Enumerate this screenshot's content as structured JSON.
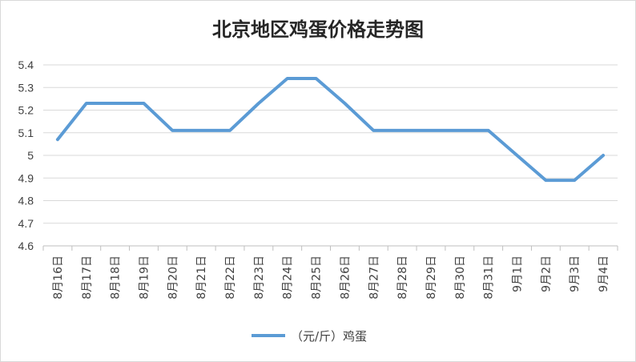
{
  "chart_data": {
    "type": "line",
    "title": "北京地区鸡蛋价格走势图",
    "xlabel": "",
    "ylabel": "",
    "categories": [
      "8月16日",
      "8月17日",
      "8月18日",
      "8月19日",
      "8月20日",
      "8月21日",
      "8月22日",
      "8月23日",
      "8月24日",
      "8月25日",
      "8月26日",
      "8月27日",
      "8月28日",
      "8月29日",
      "8月30日",
      "8月31日",
      "9月1日",
      "9月2日",
      "9月3日",
      "9月4日"
    ],
    "series": [
      {
        "name": "（元/斤）鸡蛋",
        "color": "#5b9bd5",
        "values": [
          5.07,
          5.23,
          5.23,
          5.23,
          5.11,
          5.11,
          5.11,
          5.23,
          5.34,
          5.34,
          5.23,
          5.11,
          5.11,
          5.11,
          5.11,
          5.11,
          5.0,
          4.89,
          4.89,
          5.0
        ]
      }
    ],
    "ylim": [
      4.6,
      5.4
    ],
    "yticks": [
      "4.6",
      "4.7",
      "4.8",
      "4.9",
      "5",
      "5.1",
      "5.2",
      "5.3",
      "5.4"
    ],
    "grid": true,
    "legend_position": "bottom"
  },
  "colors": {
    "gridline": "#d9d9d9",
    "axis": "#bfbfbf"
  }
}
